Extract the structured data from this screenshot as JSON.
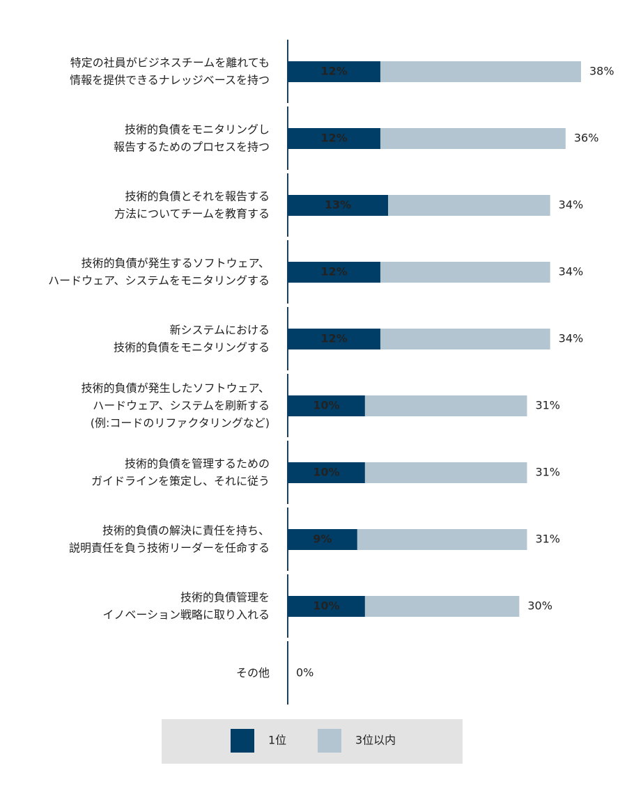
{
  "chart_data": {
    "type": "bar",
    "categories": [
      "特定の社員がビジネスチームを離れても\n情報を提供できるナレッジベースを持つ",
      "技術的負債をモニタリングし\n報告するためのプロセスを持つ",
      "技術的負債とそれを報告する\n方法についてチームを教育する",
      "技術的負債が発生するソフトウェア、\nハードウェア、システムをモニタリングする",
      "新システムにおける\n技術的負債をモニタリングする",
      "技術的負債が発生したソフトウェア、\nハードウェア、システムを刷新する\n(例:コードのリファクタリングなど)",
      "技術的負債を管理するための\nガイドラインを策定し、それに従う",
      "技術的負債の解決に責任を持ち、\n説明責任を負う技術リーダーを任命する",
      "技術的負債管理を\nイノベーション戦略に取り入れる",
      "その他"
    ],
    "series": [
      {
        "name": "3位以内",
        "color": "#b3c5d1",
        "values": [
          38,
          36,
          34,
          34,
          34,
          31,
          31,
          31,
          30,
          0
        ],
        "value_labels": [
          "38%",
          "36%",
          "34%",
          "34%",
          "34%",
          "31%",
          "31%",
          "31%",
          "30%",
          "0%"
        ]
      },
      {
        "name": "1位",
        "color": "#003e67",
        "values": [
          12,
          12,
          13,
          12,
          12,
          10,
          10,
          9,
          10,
          0
        ],
        "value_labels": [
          "12%",
          "12%",
          "13%",
          "12%",
          "12%",
          "10%",
          "10%",
          "9%",
          "10%",
          null
        ]
      }
    ],
    "legend": "bottom"
  }
}
